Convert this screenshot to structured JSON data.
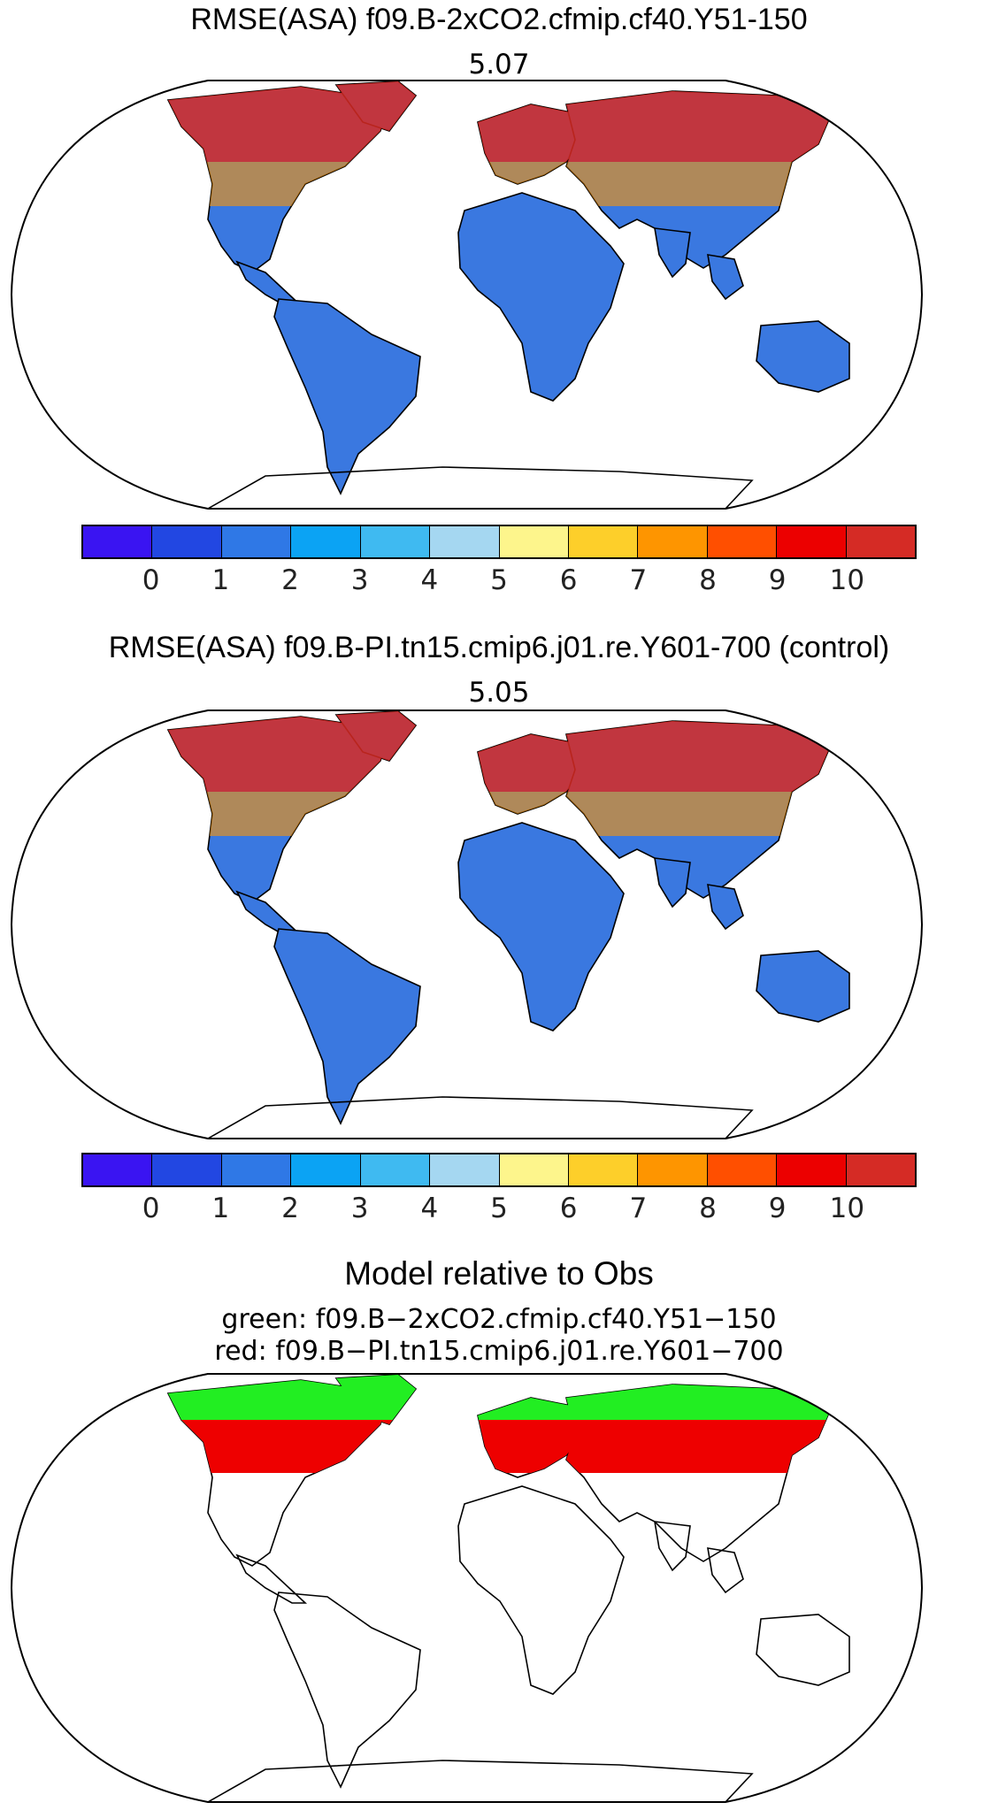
{
  "panels": [
    {
      "title": "RMSE(ASA) f09.B-2xCO2.cfmip.cf40.Y51-150",
      "value": "5.07",
      "colorbar": {
        "colors": [
          "#3a14f2",
          "#2247e2",
          "#2f78e6",
          "#0ba3f4",
          "#3fbaf1",
          "#a5d7f1",
          "#fdf58c",
          "#fdcf2a",
          "#fe9500",
          "#ff4f00",
          "#ec0000",
          "#d52b25"
        ],
        "tick_labels": [
          "0",
          "1",
          "2",
          "3",
          "4",
          "5",
          "6",
          "7",
          "8",
          "9",
          "10"
        ]
      }
    },
    {
      "title": "RMSE(ASA) f09.B-PI.tn15.cmip6.j01.re.Y601-700 (control)",
      "value": "5.05",
      "colorbar": {
        "colors": [
          "#3a14f2",
          "#2247e2",
          "#2f78e6",
          "#0ba3f4",
          "#3fbaf1",
          "#a5d7f1",
          "#fdf58c",
          "#fdcf2a",
          "#fe9500",
          "#ff4f00",
          "#ec0000",
          "#d52b25"
        ],
        "tick_labels": [
          "0",
          "1",
          "2",
          "3",
          "4",
          "5",
          "6",
          "7",
          "8",
          "9",
          "10"
        ]
      }
    }
  ],
  "comparison": {
    "title": "Model relative to Obs",
    "green_label": "green: f09.B−2xCO2.cfmip.cf40.Y51−150",
    "red_label": "red: f09.B−PI.tn15.cmip6.j01.re.Y601−700",
    "colors": {
      "green": "#22ee22",
      "red": "#ee0000"
    }
  },
  "map_projection": "robinson",
  "land_fill_colors": {
    "tropics": "#3a78e0",
    "high_lat_1": "#d92a22",
    "high_lat_2": "#fe9500"
  }
}
